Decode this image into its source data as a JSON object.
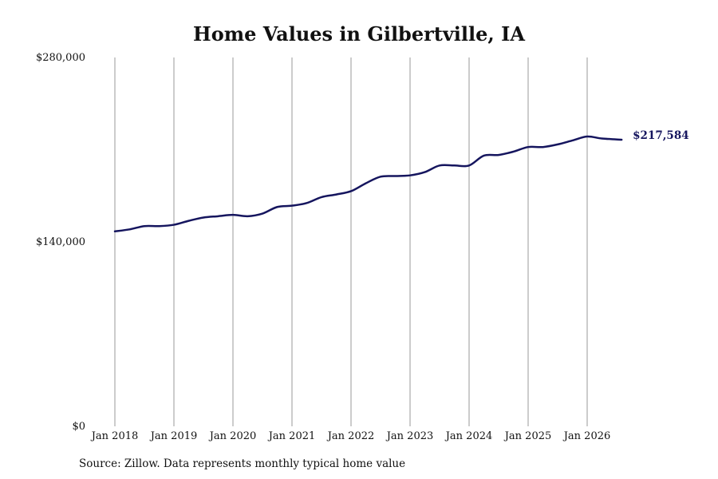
{
  "chart_data": {
    "type": "line",
    "title": "Home Values in Gilbertville, IA",
    "source": "Source: Zillow. Data represents monthly typical home value",
    "xlabel": "",
    "ylabel": "",
    "ylim": [
      0,
      280000
    ],
    "y_ticks": [
      {
        "value": 0,
        "label": "$0"
      },
      {
        "value": 140000,
        "label": "$140,000"
      },
      {
        "value": 280000,
        "label": "$280,000"
      }
    ],
    "x_ticks": [
      "Jan 2018",
      "Jan 2019",
      "Jan 2020",
      "Jan 2021",
      "Jan 2022",
      "Jan 2023",
      "Jan 2024",
      "Jan 2025",
      "Jan 2026"
    ],
    "x_range": [
      "2018-01",
      "2026-08"
    ],
    "grid": "vertical",
    "line_color": "#15155e",
    "end_label": "$217,584",
    "series": [
      {
        "name": "",
        "points": [
          {
            "x": "2018-01",
            "y": 148000
          },
          {
            "x": "2018-04",
            "y": 149500
          },
          {
            "x": "2018-07",
            "y": 152000
          },
          {
            "x": "2018-10",
            "y": 152000
          },
          {
            "x": "2019-01",
            "y": 153000
          },
          {
            "x": "2019-04",
            "y": 156000
          },
          {
            "x": "2019-07",
            "y": 158500
          },
          {
            "x": "2019-10",
            "y": 159500
          },
          {
            "x": "2020-01",
            "y": 160500
          },
          {
            "x": "2020-04",
            "y": 159500
          },
          {
            "x": "2020-07",
            "y": 161500
          },
          {
            "x": "2020-10",
            "y": 166500
          },
          {
            "x": "2021-01",
            "y": 167500
          },
          {
            "x": "2021-04",
            "y": 169500
          },
          {
            "x": "2021-07",
            "y": 174000
          },
          {
            "x": "2021-10",
            "y": 176000
          },
          {
            "x": "2022-01",
            "y": 178500
          },
          {
            "x": "2022-04",
            "y": 184500
          },
          {
            "x": "2022-07",
            "y": 189500
          },
          {
            "x": "2022-10",
            "y": 190000
          },
          {
            "x": "2023-01",
            "y": 190500
          },
          {
            "x": "2023-04",
            "y": 193000
          },
          {
            "x": "2023-07",
            "y": 198000
          },
          {
            "x": "2023-10",
            "y": 198000
          },
          {
            "x": "2024-01",
            "y": 198000
          },
          {
            "x": "2024-04",
            "y": 205500
          },
          {
            "x": "2024-07",
            "y": 206000
          },
          {
            "x": "2024-10",
            "y": 208500
          },
          {
            "x": "2025-01",
            "y": 212000
          },
          {
            "x": "2025-04",
            "y": 212000
          },
          {
            "x": "2025-07",
            "y": 214000
          },
          {
            "x": "2025-10",
            "y": 217000
          },
          {
            "x": "2026-01",
            "y": 220000
          },
          {
            "x": "2026-04",
            "y": 218500
          },
          {
            "x": "2026-08",
            "y": 217584
          }
        ]
      }
    ]
  }
}
